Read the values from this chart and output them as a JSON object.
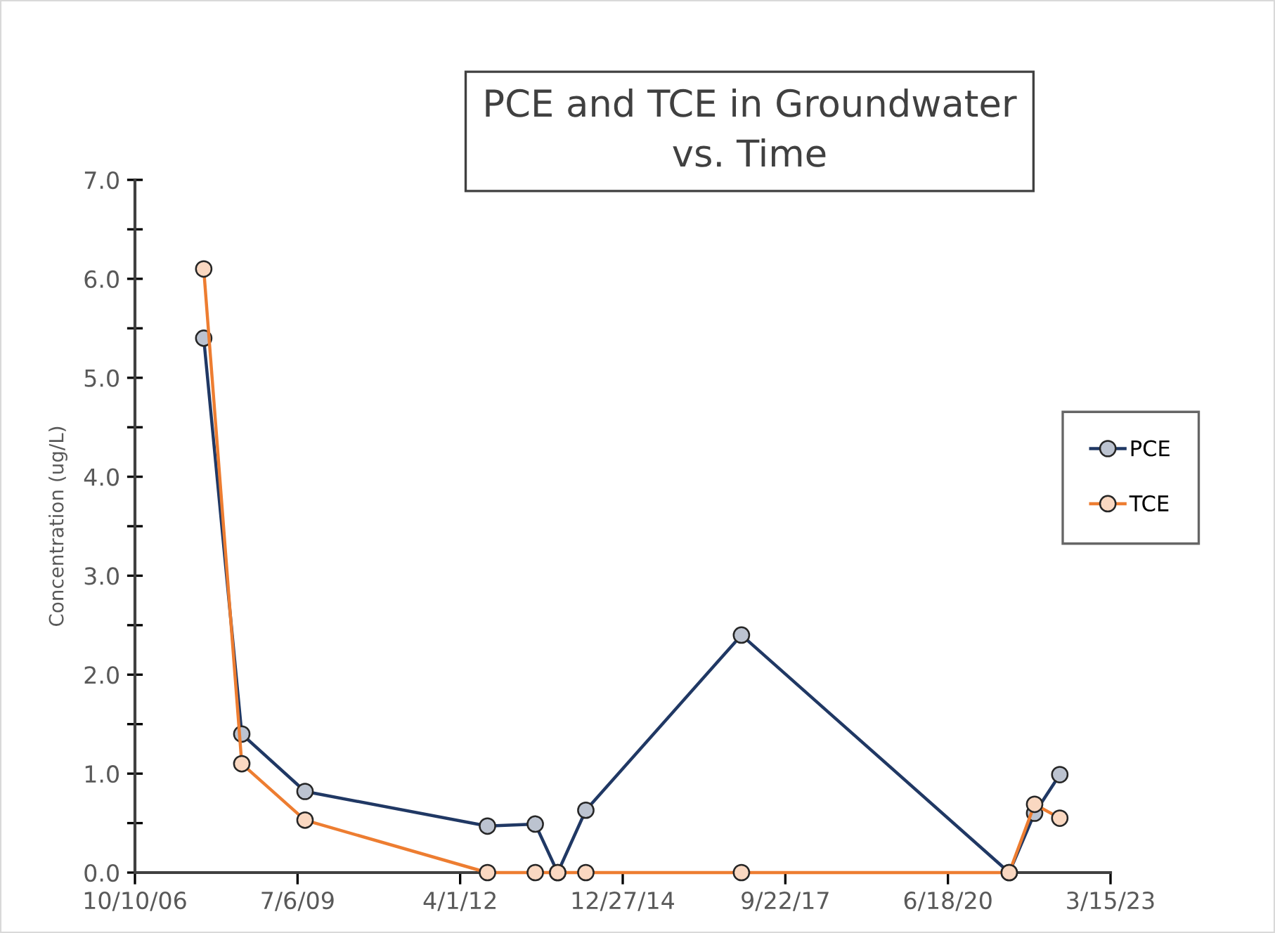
{
  "chart_data": {
    "type": "line",
    "title": "PCE and TCE in Groundwater\nvs. Time",
    "ylabel": "Concentration (ug/L)",
    "x": [
      "2007-12-07",
      "2008-07-28",
      "2009-08-21",
      "2012-09-16",
      "2013-07-07",
      "2013-11-22",
      "2014-05-14",
      "2016-12-26",
      "2021-06-30",
      "2021-12-03",
      "2022-05-07"
    ],
    "series": [
      {
        "name": "PCE",
        "color": "#203864",
        "values": [
          5.4,
          1.4,
          0.82,
          0.47,
          0.49,
          0.0,
          0.63,
          2.4,
          0.0,
          0.6,
          0.99
        ]
      },
      {
        "name": "TCE",
        "color": "#ed7d31",
        "values": [
          6.1,
          1.1,
          0.53,
          0.0,
          0.0,
          0.0,
          0.0,
          0.0,
          0.0,
          0.69,
          0.55
        ]
      }
    ],
    "xlim": [
      "2006-10-10",
      "2023-03-15"
    ],
    "xticks": [
      {
        "value": "2006-10-10",
        "label": "10/10/06"
      },
      {
        "value": "2009-07-06",
        "label": "7/6/09"
      },
      {
        "value": "2012-04-01",
        "label": "4/1/12"
      },
      {
        "value": "2014-12-27",
        "label": "12/27/14"
      },
      {
        "value": "2017-09-22",
        "label": "9/22/17"
      },
      {
        "value": "2020-06-18",
        "label": "6/18/20"
      },
      {
        "value": "2023-03-15",
        "label": "3/15/23"
      }
    ],
    "ylim": [
      0,
      7
    ],
    "yticks": [
      {
        "value": 0,
        "label": "0.0"
      },
      {
        "value": 0.5,
        "label": null
      },
      {
        "value": 1,
        "label": "1.0"
      },
      {
        "value": 1.5,
        "label": null
      },
      {
        "value": 2,
        "label": "2.0"
      },
      {
        "value": 2.5,
        "label": null
      },
      {
        "value": 3,
        "label": "3.0"
      },
      {
        "value": 3.5,
        "label": null
      },
      {
        "value": 4,
        "label": "4.0"
      },
      {
        "value": 4.5,
        "label": null
      },
      {
        "value": 5,
        "label": "5.0"
      },
      {
        "value": 5.5,
        "label": null
      },
      {
        "value": 6,
        "label": "6.0"
      },
      {
        "value": 6.5,
        "label": null
      },
      {
        "value": 7,
        "label": "7.0"
      }
    ],
    "grid": false,
    "legend": "right",
    "marker": "circle",
    "line_style": "solid"
  }
}
